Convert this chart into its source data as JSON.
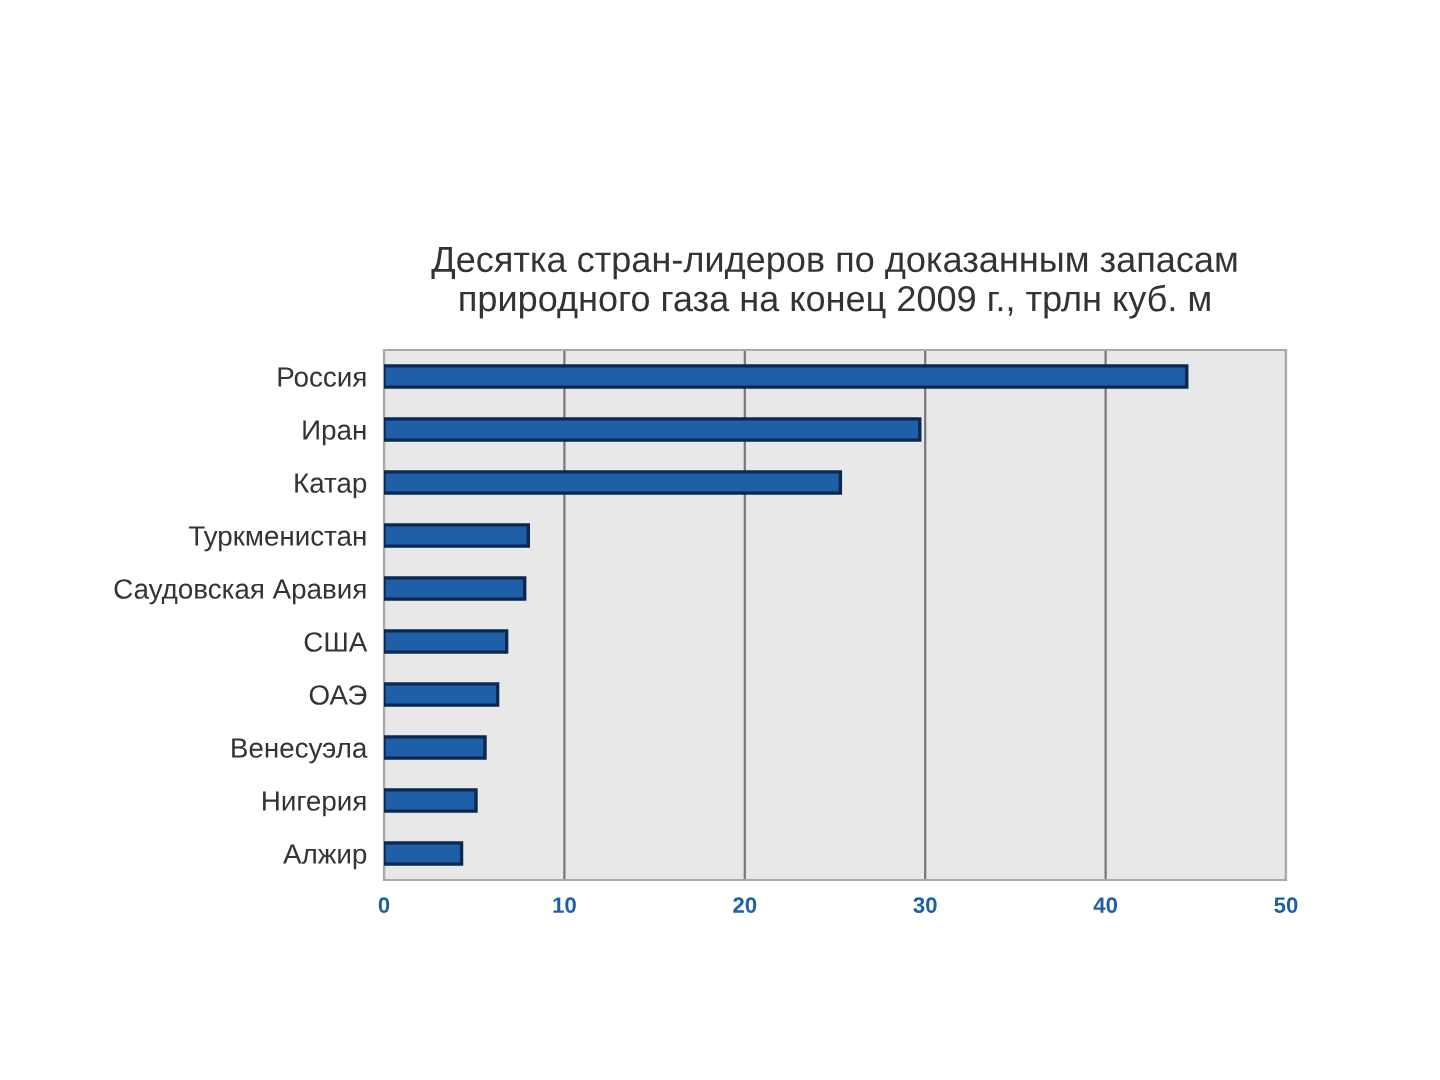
{
  "chart_data": {
    "type": "bar",
    "orientation": "horizontal",
    "title": "Десятка стран-лидеров по доказанным запасам\nприродного газа на конец 2009 г., трлн куб. м",
    "categories": [
      "Россия",
      "Иран",
      "Катар",
      "Туркменистан",
      "Саудовская Аравия",
      "США",
      "ОАЭ",
      "Венесуэла",
      "Нигерия",
      "Алжир"
    ],
    "values": [
      44.5,
      29.7,
      25.3,
      8.0,
      7.8,
      6.8,
      6.3,
      5.6,
      5.1,
      4.3
    ],
    "color": "#1f5fa8",
    "xlim": [
      0,
      50
    ],
    "xticks": [
      0,
      10,
      20,
      30,
      40,
      50
    ],
    "grid": "x"
  }
}
